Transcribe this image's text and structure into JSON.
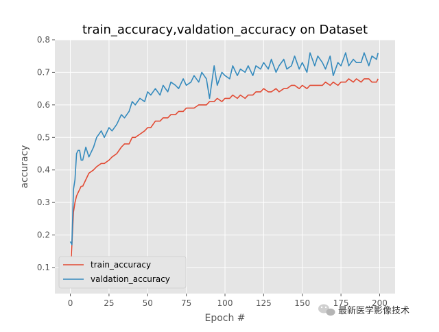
{
  "chart_data": {
    "type": "line",
    "title": "train_accuracy,valdation_accuracy on Dataset",
    "xlabel": "Epoch #",
    "ylabel": "accuracy",
    "xlim": [
      -10,
      210
    ],
    "ylim": [
      0.02,
      0.8
    ],
    "xticks": [
      0,
      25,
      50,
      75,
      100,
      125,
      150,
      175,
      200
    ],
    "yticks": [
      0.1,
      0.2,
      0.3,
      0.4,
      0.5,
      0.6,
      0.7,
      0.8
    ],
    "grid": true,
    "legend_position": "lower-left",
    "series": [
      {
        "name": "train_accuracy",
        "color": "#E24A33",
        "x": [
          0,
          1,
          2,
          3,
          4,
          5,
          6,
          7,
          8,
          10,
          12,
          15,
          17,
          20,
          22,
          25,
          27,
          30,
          33,
          35,
          38,
          40,
          42,
          45,
          48,
          50,
          52,
          55,
          58,
          60,
          63,
          65,
          68,
          70,
          73,
          75,
          78,
          80,
          83,
          85,
          88,
          90,
          93,
          95,
          98,
          100,
          103,
          105,
          108,
          110,
          113,
          115,
          118,
          120,
          123,
          125,
          128,
          130,
          133,
          135,
          138,
          140,
          143,
          145,
          148,
          150,
          153,
          155,
          158,
          160,
          163,
          165,
          168,
          170,
          173,
          175,
          178,
          180,
          183,
          185,
          188,
          190,
          193,
          195,
          198,
          199
        ],
        "values": [
          0.08,
          0.17,
          0.27,
          0.3,
          0.32,
          0.33,
          0.34,
          0.35,
          0.35,
          0.37,
          0.39,
          0.4,
          0.41,
          0.42,
          0.42,
          0.43,
          0.44,
          0.45,
          0.47,
          0.48,
          0.48,
          0.5,
          0.5,
          0.51,
          0.52,
          0.53,
          0.53,
          0.55,
          0.55,
          0.56,
          0.56,
          0.57,
          0.57,
          0.58,
          0.58,
          0.59,
          0.59,
          0.59,
          0.6,
          0.6,
          0.6,
          0.61,
          0.61,
          0.62,
          0.61,
          0.62,
          0.62,
          0.63,
          0.62,
          0.63,
          0.62,
          0.63,
          0.63,
          0.64,
          0.64,
          0.65,
          0.64,
          0.64,
          0.65,
          0.64,
          0.65,
          0.65,
          0.66,
          0.66,
          0.65,
          0.66,
          0.65,
          0.66,
          0.66,
          0.66,
          0.66,
          0.67,
          0.66,
          0.67,
          0.66,
          0.67,
          0.67,
          0.68,
          0.67,
          0.68,
          0.67,
          0.68,
          0.68,
          0.67,
          0.67,
          0.68
        ]
      },
      {
        "name": "valdation_accuracy",
        "color": "#348ABD",
        "x": [
          0,
          1,
          2,
          3,
          4,
          5,
          6,
          7,
          8,
          10,
          12,
          15,
          17,
          20,
          22,
          25,
          27,
          30,
          33,
          35,
          38,
          40,
          42,
          45,
          48,
          50,
          52,
          55,
          58,
          60,
          63,
          65,
          68,
          70,
          73,
          75,
          78,
          80,
          83,
          85,
          88,
          90,
          93,
          95,
          98,
          100,
          103,
          105,
          108,
          110,
          113,
          115,
          118,
          120,
          123,
          125,
          128,
          130,
          133,
          135,
          138,
          140,
          143,
          145,
          148,
          150,
          153,
          155,
          158,
          160,
          163,
          165,
          168,
          170,
          173,
          175,
          178,
          180,
          183,
          185,
          188,
          190,
          193,
          195,
          198,
          199
        ],
        "values": [
          0.18,
          0.17,
          0.34,
          0.37,
          0.45,
          0.46,
          0.46,
          0.43,
          0.43,
          0.47,
          0.44,
          0.47,
          0.5,
          0.52,
          0.5,
          0.53,
          0.52,
          0.54,
          0.57,
          0.56,
          0.58,
          0.61,
          0.6,
          0.62,
          0.61,
          0.64,
          0.63,
          0.65,
          0.63,
          0.66,
          0.64,
          0.67,
          0.66,
          0.65,
          0.68,
          0.66,
          0.67,
          0.69,
          0.67,
          0.7,
          0.68,
          0.62,
          0.72,
          0.66,
          0.7,
          0.69,
          0.68,
          0.72,
          0.69,
          0.71,
          0.7,
          0.72,
          0.69,
          0.72,
          0.71,
          0.73,
          0.71,
          0.74,
          0.7,
          0.72,
          0.74,
          0.71,
          0.72,
          0.75,
          0.71,
          0.73,
          0.7,
          0.76,
          0.72,
          0.75,
          0.73,
          0.71,
          0.75,
          0.69,
          0.73,
          0.72,
          0.76,
          0.72,
          0.74,
          0.73,
          0.73,
          0.76,
          0.72,
          0.75,
          0.74,
          0.76
        ]
      }
    ]
  },
  "watermark": {
    "icon": "wechat-icon",
    "text": "最新医学影像技术"
  }
}
